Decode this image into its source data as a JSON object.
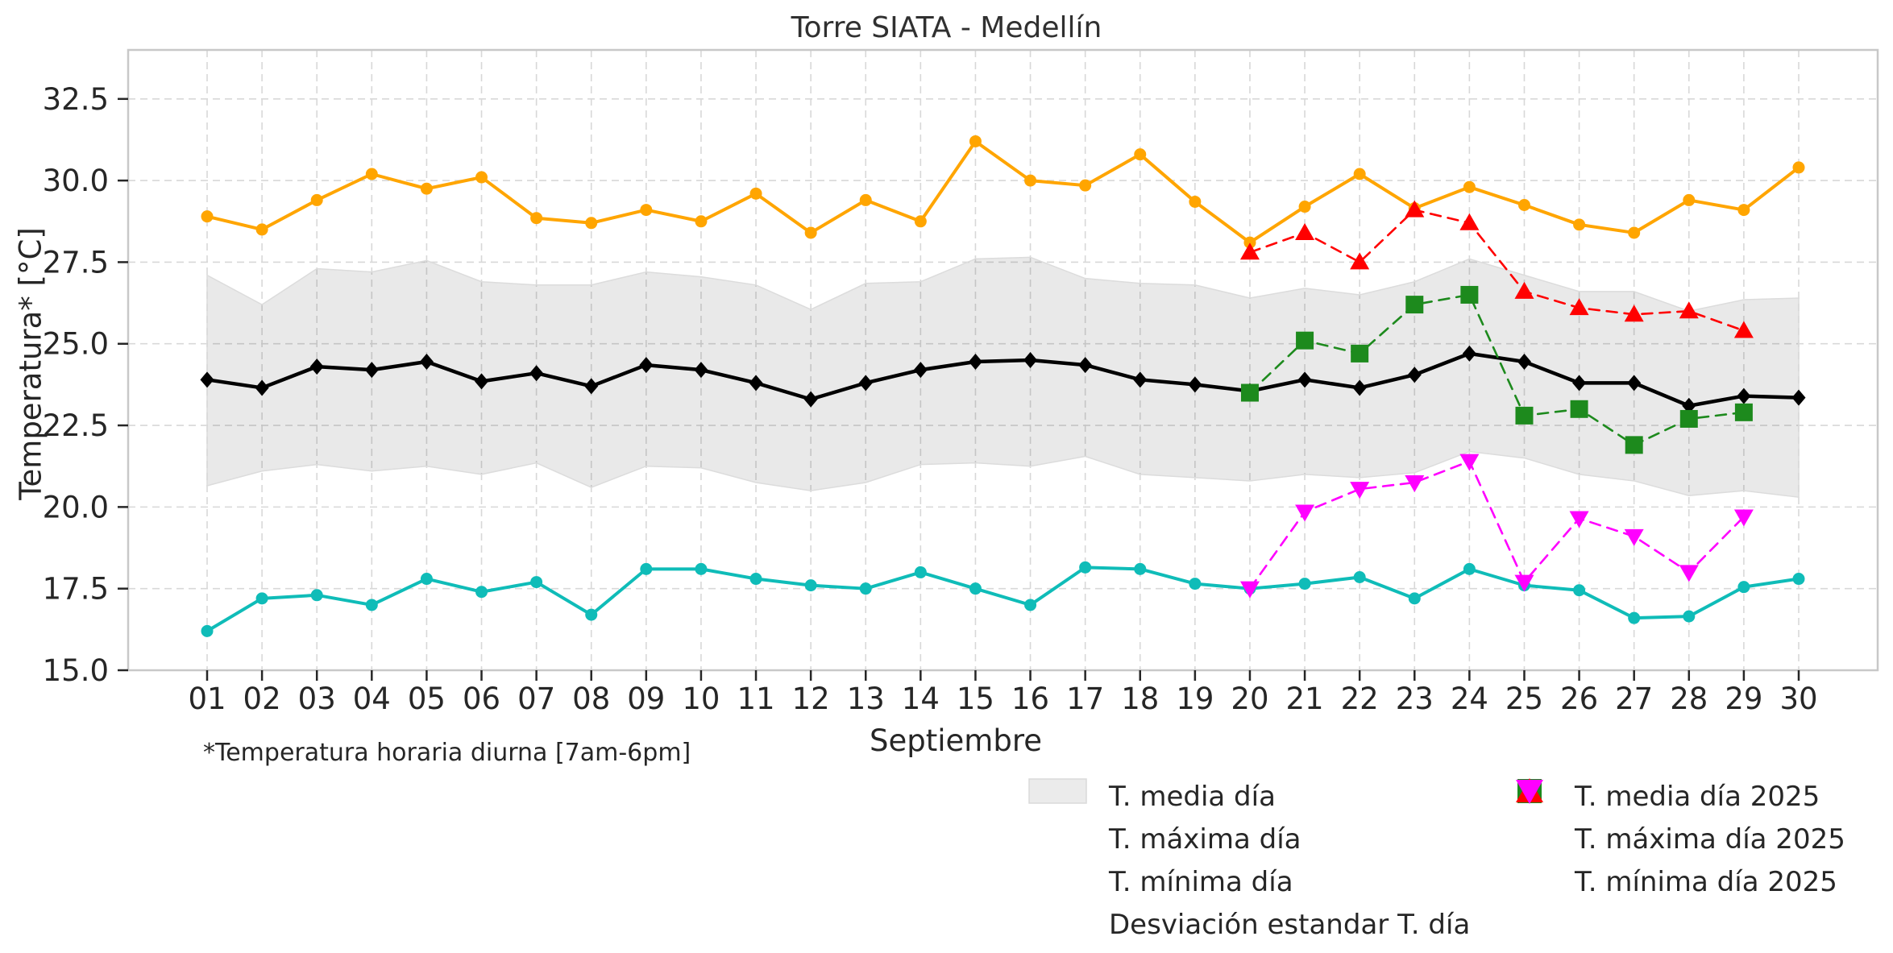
{
  "title": "Torre SIATA - Medellín",
  "footnote": "*Temperatura horaria diurna [7am-6pm]",
  "colors": {
    "mean": "#000000",
    "max": "#FFA500",
    "min": "#0FBCB8",
    "band": "rgba(0,0,0,0.085)",
    "band_edge": "#dcdcdc",
    "mean2025": "#1d8a1d",
    "max2025": "#ff0000",
    "min2025": "#ff00ff",
    "grid": "#d8d8d8",
    "spine": "#c8c8c8",
    "tick": "#262626",
    "text": "#262626"
  },
  "chart_data": {
    "type": "line",
    "title": "Torre SIATA - Medellín",
    "xlabel": "Septiembre",
    "ylabel": "Temperatura* [°C]",
    "annotation": "*Temperatura horaria diurna [7am-6pm]",
    "grid": true,
    "ylim": [
      15.0,
      34.0
    ],
    "y_ticks": [
      15.0,
      17.5,
      20.0,
      22.5,
      25.0,
      27.5,
      30.0,
      32.5
    ],
    "y_ticklabels": [
      "15.0",
      "17.5",
      "20.0",
      "22.5",
      "25.0",
      "27.5",
      "30.0",
      "32.5"
    ],
    "x_ticklabels": [
      "01",
      "02",
      "03",
      "04",
      "05",
      "06",
      "07",
      "08",
      "09",
      "10",
      "11",
      "12",
      "13",
      "14",
      "15",
      "16",
      "17",
      "18",
      "19",
      "20",
      "21",
      "22",
      "23",
      "24",
      "25",
      "26",
      "27",
      "28",
      "29",
      "30"
    ],
    "legend_position": "below-right, two columns, no frame",
    "series": [
      {
        "name": "T. media día",
        "type": "line",
        "style": "solid",
        "color": "#000000",
        "marker": "diamond",
        "days": [
          1,
          2,
          3,
          4,
          5,
          6,
          7,
          8,
          9,
          10,
          11,
          12,
          13,
          14,
          15,
          16,
          17,
          18,
          19,
          20,
          21,
          22,
          23,
          24,
          25,
          26,
          27,
          28,
          29,
          30
        ],
        "values": [
          23.9,
          23.65,
          24.3,
          24.2,
          24.45,
          23.85,
          24.1,
          23.7,
          24.35,
          24.2,
          23.8,
          23.3,
          23.8,
          24.2,
          24.45,
          24.5,
          24.35,
          23.9,
          23.75,
          23.55,
          23.9,
          23.65,
          24.05,
          24.7,
          24.45,
          23.8,
          23.8,
          23.1,
          23.4,
          23.35
        ]
      },
      {
        "name": "T. máxima día",
        "type": "line",
        "style": "solid",
        "color": "#FFA500",
        "marker": "circle",
        "days": [
          1,
          2,
          3,
          4,
          5,
          6,
          7,
          8,
          9,
          10,
          11,
          12,
          13,
          14,
          15,
          16,
          17,
          18,
          19,
          20,
          21,
          22,
          23,
          24,
          25,
          26,
          27,
          28,
          29,
          30
        ],
        "values": [
          28.9,
          28.5,
          29.4,
          30.2,
          29.75,
          30.1,
          28.85,
          28.7,
          29.1,
          28.75,
          29.6,
          28.4,
          29.4,
          28.75,
          31.2,
          30.0,
          29.85,
          30.8,
          29.35,
          28.1,
          29.2,
          30.2,
          29.15,
          29.8,
          29.25,
          28.65,
          28.4,
          29.4,
          29.1,
          30.4
        ]
      },
      {
        "name": "T. mínima día",
        "type": "line",
        "style": "solid",
        "color": "#0FBCB8",
        "marker": "circle",
        "days": [
          1,
          2,
          3,
          4,
          5,
          6,
          7,
          8,
          9,
          10,
          11,
          12,
          13,
          14,
          15,
          16,
          17,
          18,
          19,
          20,
          21,
          22,
          23,
          24,
          25,
          26,
          27,
          28,
          29,
          30
        ],
        "values": [
          16.2,
          17.2,
          17.3,
          17.0,
          17.8,
          17.4,
          17.7,
          16.7,
          18.1,
          18.1,
          17.8,
          17.6,
          17.5,
          18.0,
          17.5,
          17.0,
          18.15,
          18.1,
          17.65,
          17.5,
          17.65,
          17.85,
          17.2,
          18.1,
          17.6,
          17.45,
          16.6,
          16.65,
          17.55,
          17.8
        ]
      },
      {
        "name": "Desviación estandar T. día",
        "type": "band",
        "color": "rgba(0,0,0,0.085)",
        "days": [
          1,
          2,
          3,
          4,
          5,
          6,
          7,
          8,
          9,
          10,
          11,
          12,
          13,
          14,
          15,
          16,
          17,
          18,
          19,
          20,
          21,
          22,
          23,
          24,
          25,
          26,
          27,
          28,
          29,
          30
        ],
        "upper": [
          27.1,
          26.2,
          27.3,
          27.2,
          27.55,
          26.9,
          26.8,
          26.8,
          27.2,
          27.05,
          26.8,
          26.05,
          26.85,
          26.9,
          27.6,
          27.65,
          27.0,
          26.85,
          26.8,
          26.4,
          26.7,
          26.5,
          26.9,
          27.6,
          27.1,
          26.6,
          26.6,
          26.0,
          26.35,
          26.4
        ],
        "lower": [
          20.65,
          21.1,
          21.3,
          21.1,
          21.25,
          21.0,
          21.35,
          20.6,
          21.25,
          21.2,
          20.75,
          20.5,
          20.75,
          21.3,
          21.35,
          21.25,
          21.55,
          21.0,
          20.9,
          20.8,
          21.0,
          20.9,
          21.05,
          21.7,
          21.5,
          21.0,
          20.8,
          20.35,
          20.5,
          20.3
        ]
      },
      {
        "name": "T. media día 2025",
        "type": "line",
        "style": "dashed",
        "color": "#1d8a1d",
        "marker": "square",
        "days": [
          20,
          21,
          22,
          23,
          24,
          25,
          26,
          27,
          28,
          29
        ],
        "values": [
          23.5,
          25.1,
          24.7,
          26.2,
          26.5,
          22.8,
          23.0,
          21.9,
          22.7,
          22.9
        ]
      },
      {
        "name": "T. máxima día 2025",
        "type": "line",
        "style": "dashed",
        "color": "#ff0000",
        "marker": "triangle-up",
        "days": [
          20,
          21,
          22,
          23,
          24,
          25,
          26,
          27,
          28,
          29
        ],
        "values": [
          27.8,
          28.4,
          27.5,
          29.1,
          28.7,
          26.6,
          26.1,
          25.9,
          26.0,
          25.4
        ]
      },
      {
        "name": "T. mínima día 2025",
        "type": "line",
        "style": "dashed",
        "color": "#ff00ff",
        "marker": "triangle-down",
        "days": [
          20,
          21,
          22,
          23,
          24,
          25,
          26,
          27,
          28,
          29
        ],
        "values": [
          17.5,
          19.85,
          20.55,
          20.75,
          21.4,
          17.7,
          19.65,
          19.1,
          18.0,
          19.7
        ]
      }
    ]
  }
}
